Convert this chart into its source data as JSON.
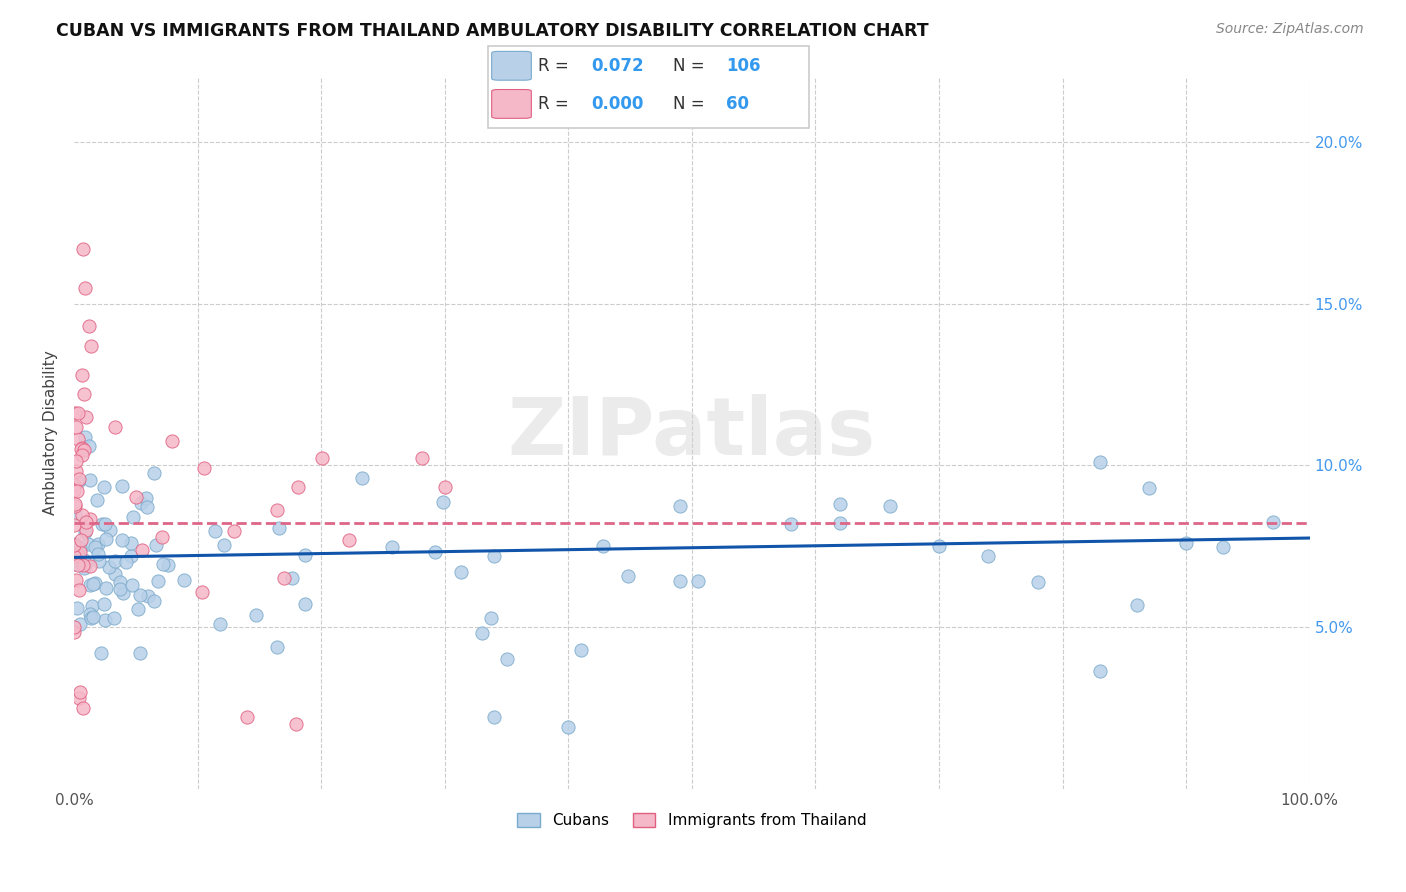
{
  "title": "CUBAN VS IMMIGRANTS FROM THAILAND AMBULATORY DISABILITY CORRELATION CHART",
  "source": "Source: ZipAtlas.com",
  "ylabel": "Ambulatory Disability",
  "xlabel": "",
  "watermark": "ZIPatlas",
  "xlim": [
    0,
    1.0
  ],
  "ylim": [
    0,
    0.22
  ],
  "xtick_vals": [
    0.0,
    0.1,
    0.2,
    0.3,
    0.4,
    0.5,
    0.6,
    0.7,
    0.8,
    0.9,
    1.0
  ],
  "xticklabels": [
    "0.0%",
    "",
    "",
    "",
    "",
    "",
    "",
    "",
    "",
    "",
    "100.0%"
  ],
  "ytick_vals": [
    0.0,
    0.05,
    0.1,
    0.15,
    0.2
  ],
  "yticklabels": [
    "",
    "5.0%",
    "10.0%",
    "15.0%",
    "20.0%"
  ],
  "blue_fill": "#b8d0e8",
  "blue_edge": "#7aaacc",
  "pink_fill": "#f5b8c8",
  "pink_edge": "#e06080",
  "blue_line_color": "#1155aa",
  "pink_line_color": "#dd6688",
  "grid_color": "#cccccc",
  "legend_blue_R": "0.072",
  "legend_blue_N": "106",
  "legend_pink_R": "0.000",
  "legend_pink_N": "60",
  "blue_line_x0": 0.0,
  "blue_line_y0": 0.0715,
  "blue_line_x1": 1.0,
  "blue_line_y1": 0.0775,
  "pink_line_x0": 0.0,
  "pink_line_y0": 0.082,
  "pink_line_x1": 1.0,
  "pink_line_y1": 0.082
}
